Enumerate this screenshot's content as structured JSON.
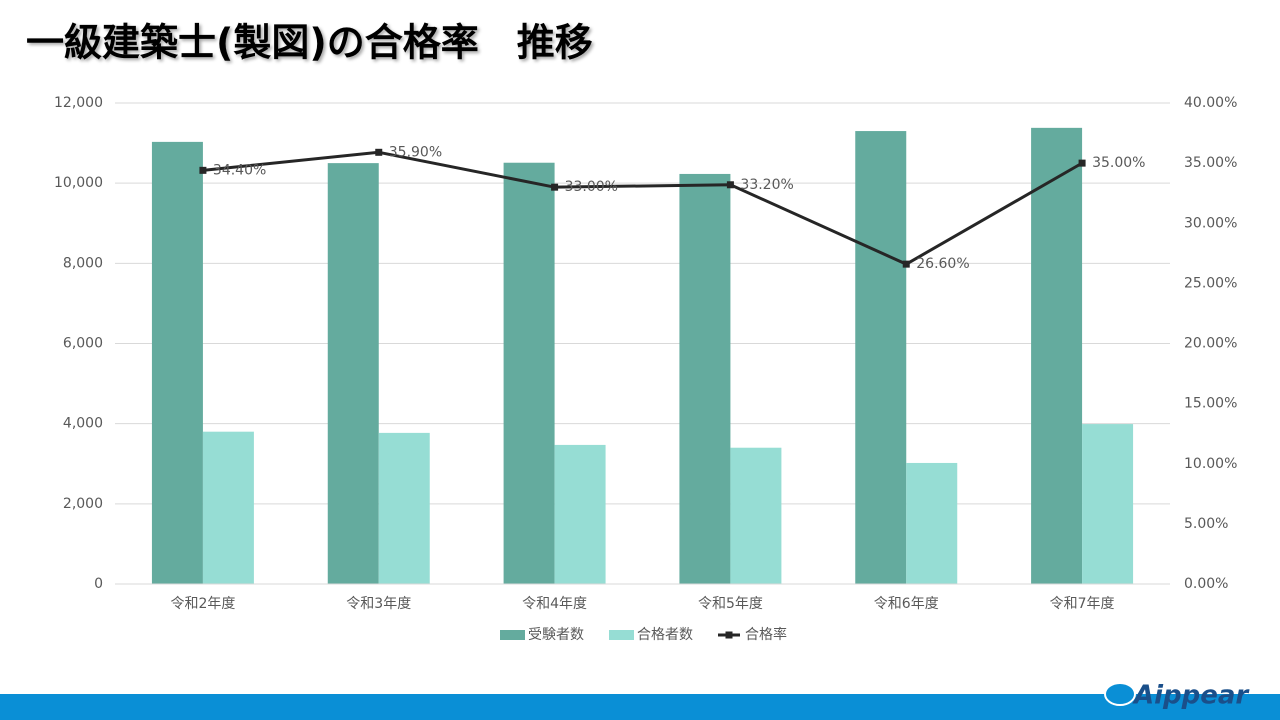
{
  "brand": "Aippear",
  "chart_data": {
    "type": "bar",
    "title": "一級建築士(製図)の合格率　推移",
    "categories": [
      "令和2年度",
      "令和3年度",
      "令和4年度",
      "令和5年度",
      "令和6年度",
      "令和7年度"
    ],
    "series": [
      {
        "name": "受験者数",
        "color": "#64ab9e",
        "values": [
          11030,
          10500,
          10510,
          10230,
          11300,
          11380
        ]
      },
      {
        "name": "合格者数",
        "color": "#96ddd4",
        "values": [
          3800,
          3770,
          3470,
          3400,
          3020,
          3990
        ]
      },
      {
        "name": "合格率",
        "color": "#262626",
        "type": "line",
        "axis": "y2",
        "values": [
          34.4,
          35.9,
          33.0,
          33.2,
          26.6,
          35.0
        ],
        "value_labels": [
          "34.40%",
          "35.90%",
          "33.00%",
          "33.20%",
          "26.60%",
          "35.00%"
        ]
      }
    ],
    "ylim": [
      0,
      12000
    ],
    "yticks": [
      0,
      {
        "value": 2000,
        "label": "2,000"
      },
      {
        "value": 4000,
        "label": "4,000"
      },
      {
        "value": 6000,
        "label": "6,000"
      },
      {
        "value": 8000,
        "label": "8,000"
      },
      {
        "value": 10000,
        "label": "10,000"
      },
      {
        "value": 12000,
        "label": "12,000"
      }
    ],
    "y2lim": [
      0,
      40
    ],
    "y2ticks": [
      {
        "value": 0,
        "label": "0.00%"
      },
      {
        "value": 5,
        "label": "5.00%"
      },
      {
        "value": 10,
        "label": "10.00%"
      },
      {
        "value": 15,
        "label": "15.00%"
      },
      {
        "value": 20,
        "label": "20.00%"
      },
      {
        "value": 25,
        "label": "25.00%"
      },
      {
        "value": 30,
        "label": "30.00%"
      },
      {
        "value": 35,
        "label": "35.00%"
      },
      {
        "value": 40,
        "label": "40.00%"
      }
    ],
    "grid": true,
    "legend": "bottom"
  }
}
